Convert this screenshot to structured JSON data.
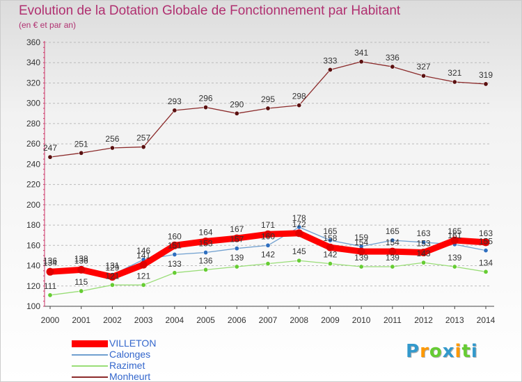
{
  "title": "Evolution de la Dotation Globale de Fonctionnement par Habitant",
  "subtitle": "(en € et par an)",
  "logo": {
    "text": "Proxiti",
    "colors": [
      "#3399cc",
      "#ff9900",
      "#66cc33",
      "#3399cc",
      "#ff9900",
      "#66cc33",
      "#3399cc"
    ]
  },
  "chart_data": {
    "type": "line",
    "title": "Evolution de la Dotation Globale de Fonctionnement par Habitant",
    "subtitle": "(en € et par an)",
    "xlabel": "",
    "ylabel": "",
    "x": [
      "2000",
      "2001",
      "2002",
      "2003",
      "2004",
      "2005",
      "2006",
      "2007",
      "2008",
      "2009",
      "2010",
      "2011",
      "2012",
      "2013",
      "2014"
    ],
    "ylim": [
      100,
      360
    ],
    "yticks": [
      100,
      120,
      140,
      160,
      180,
      200,
      220,
      240,
      260,
      280,
      300,
      320,
      340,
      360
    ],
    "grid": "horizontal dashed",
    "legend_position": "bottom-left",
    "series": [
      {
        "name": "VILLETON",
        "color": "#ff0000",
        "point_color": "#e00000",
        "emphasis": true,
        "values": [
          134,
          136,
          129,
          141,
          160,
          164,
          167,
          171,
          172,
          158,
          154,
          154,
          153,
          165,
          163
        ],
        "labels": [
          "134",
          "136",
          "129",
          "141",
          "160",
          "164",
          "167",
          "171",
          "172",
          "158",
          "154",
          "154",
          "153",
          "165",
          "163"
        ]
      },
      {
        "name": "Calonges",
        "color": "#6f9fcf",
        "point_color": "#2f6fbf",
        "emphasis": false,
        "values": [
          136,
          138,
          131,
          146,
          151,
          153,
          157,
          160,
          178,
          165,
          159,
          165,
          163,
          161,
          155
        ],
        "labels": [
          "136",
          "138",
          "131",
          "146",
          "151",
          "153",
          "157",
          "160",
          "178",
          "165",
          "159",
          "165",
          "163",
          "161",
          "155"
        ]
      },
      {
        "name": "Razimet",
        "color": "#99dd77",
        "point_color": "#66cc33",
        "emphasis": false,
        "values": [
          111,
          115,
          121,
          121,
          133,
          136,
          139,
          142,
          145,
          142,
          139,
          139,
          143,
          139,
          134
        ],
        "labels": [
          "111",
          "115",
          "121",
          "121",
          "133",
          "136",
          "139",
          "142",
          "145",
          "142",
          "139",
          "139",
          "143",
          "139",
          "134"
        ]
      },
      {
        "name": "Monheurt",
        "color": "#8b2a2a",
        "point_color": "#5a1010",
        "emphasis": false,
        "values": [
          247,
          251,
          256,
          257,
          293,
          296,
          290,
          295,
          298,
          333,
          341,
          336,
          327,
          321,
          319
        ],
        "labels": [
          "247",
          "251",
          "256",
          "257",
          "293",
          "296",
          "290",
          "295",
          "298",
          "333",
          "341",
          "336",
          "327",
          "321",
          "319"
        ]
      }
    ]
  }
}
